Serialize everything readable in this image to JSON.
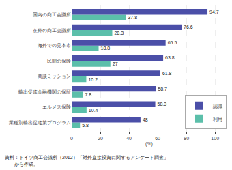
{
  "chart_data": {
    "type": "bar",
    "orientation": "horizontal",
    "categories": [
      "業種別輸出促進策プログラム",
      "エルメス保険",
      "輸出促進金融機関の保証",
      "商談ミッション",
      "民間の保険",
      "海外での見本市",
      "在外の商工会議所",
      "国内の商工会議所"
    ],
    "series": [
      {
        "name": "認識",
        "color": "#4b4fa8",
        "values": [
          48,
          58.3,
          58.7,
          61.8,
          63.8,
          65.5,
          76.6,
          94.7
        ]
      },
      {
        "name": "利用",
        "color": "#5bbfaa",
        "values": [
          5.8,
          10.4,
          7.8,
          10.2,
          27,
          18.8,
          28.3,
          37.8
        ]
      }
    ],
    "xlabel": "(%)",
    "xlim": [
      0,
      108
    ],
    "xticks": [
      0,
      20,
      40,
      60,
      80,
      100
    ],
    "grid": true,
    "legend": "lower right",
    "data_labels": true,
    "annotations": [
      "資料：ドイツ商工会議所（2012）「対外直接投資に関するアンケート調査」",
      "　　から作成。"
    ]
  }
}
